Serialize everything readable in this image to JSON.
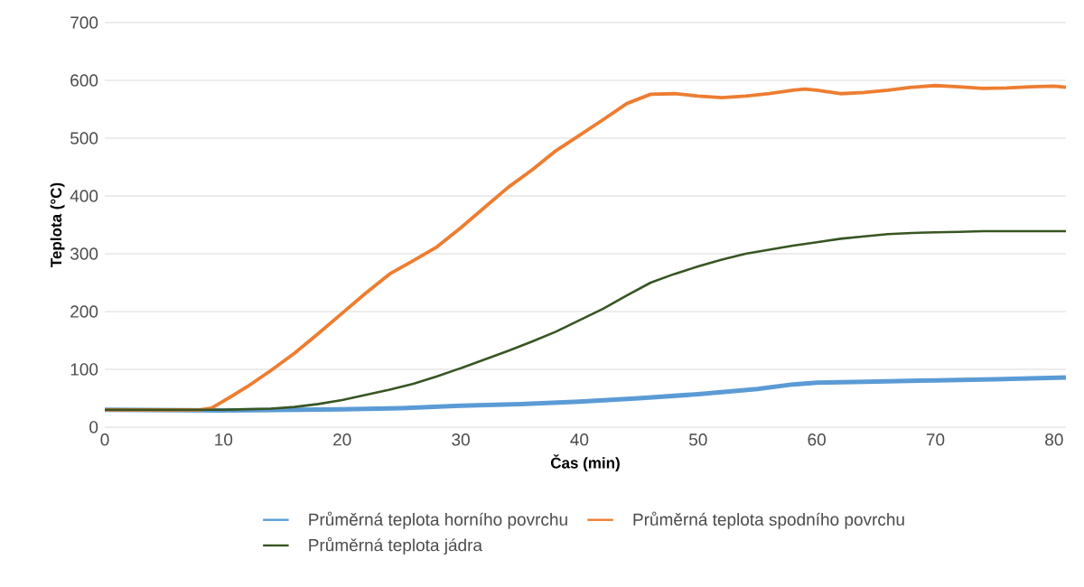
{
  "chart_data": {
    "type": "line",
    "xlabel": "Čas (min)",
    "ylabel": "Teplota (°C)",
    "xlim": [
      0,
      81
    ],
    "xticks": [
      0,
      10,
      20,
      30,
      40,
      50,
      60,
      70,
      80
    ],
    "ylim": [
      0,
      700
    ],
    "yticks": [
      0,
      100,
      200,
      300,
      400,
      500,
      600,
      700
    ],
    "grid": "y",
    "legend": "bottom",
    "marker": "none",
    "line_style": "solid",
    "series": [
      {
        "name": "Průměrná teplota horního povrchu",
        "color": "#5b9bd5",
        "x": [
          0,
          10,
          20,
          25,
          30,
          35,
          40,
          45,
          50,
          55,
          58,
          60,
          65,
          70,
          75,
          81
        ],
        "values": [
          30,
          29,
          31,
          33,
          37,
          40,
          44,
          50,
          57,
          66,
          74,
          77,
          79,
          81,
          83,
          86
        ]
      },
      {
        "name": "Průměrná teplota spodního povrchu",
        "color": "#ed7d31",
        "x": [
          0,
          8,
          9,
          10,
          12,
          14,
          16,
          18,
          20,
          22,
          24,
          26,
          28,
          30,
          32,
          34,
          36,
          38,
          40,
          42,
          44,
          46,
          48,
          50,
          52,
          54,
          56,
          58,
          59,
          60,
          62,
          64,
          66,
          68,
          70,
          72,
          74,
          76,
          78,
          80,
          81
        ],
        "values": [
          30,
          30,
          33,
          45,
          70,
          98,
          128,
          162,
          197,
          232,
          265,
          288,
          312,
          345,
          380,
          415,
          445,
          478,
          505,
          532,
          560,
          576,
          577,
          573,
          570,
          573,
          577,
          583,
          585,
          583,
          577,
          579,
          583,
          588,
          591,
          589,
          586,
          587,
          589,
          590,
          588
        ]
      },
      {
        "name": "Průměrná teplota jádra",
        "color": "#375623",
        "x": [
          0,
          10,
          14,
          16,
          18,
          20,
          22,
          24,
          26,
          28,
          30,
          32,
          34,
          36,
          38,
          40,
          42,
          44,
          46,
          48,
          50,
          52,
          54,
          56,
          58,
          60,
          62,
          64,
          66,
          68,
          70,
          72,
          74,
          76,
          81
        ],
        "values": [
          30,
          30,
          32,
          35,
          40,
          47,
          56,
          65,
          75,
          88,
          102,
          117,
          132,
          148,
          165,
          185,
          205,
          228,
          250,
          265,
          278,
          290,
          300,
          307,
          314,
          320,
          326,
          330,
          334,
          336,
          337,
          338,
          339,
          339,
          339
        ]
      }
    ]
  }
}
